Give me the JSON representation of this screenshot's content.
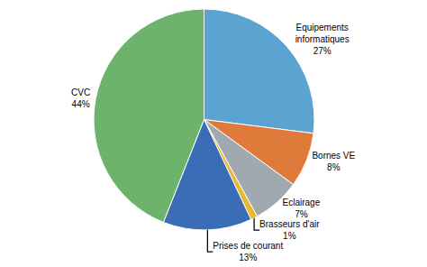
{
  "chart_data": {
    "type": "pie",
    "categories": [
      "Equipements\ninformatiques",
      "Bornes VE",
      "Eclairage",
      "Brasseurs d'air",
      "Prises de courant",
      "CVC"
    ],
    "values": [
      27,
      8,
      7,
      1,
      13,
      44
    ],
    "value_labels": [
      "27%",
      "8%",
      "7%",
      "1%",
      "13%",
      "44%"
    ],
    "colors": [
      "#5ba3d0",
      "#e07a3a",
      "#a0a9b0",
      "#e8b830",
      "#3a6db5",
      "#6db36b"
    ],
    "data_labels": true
  }
}
